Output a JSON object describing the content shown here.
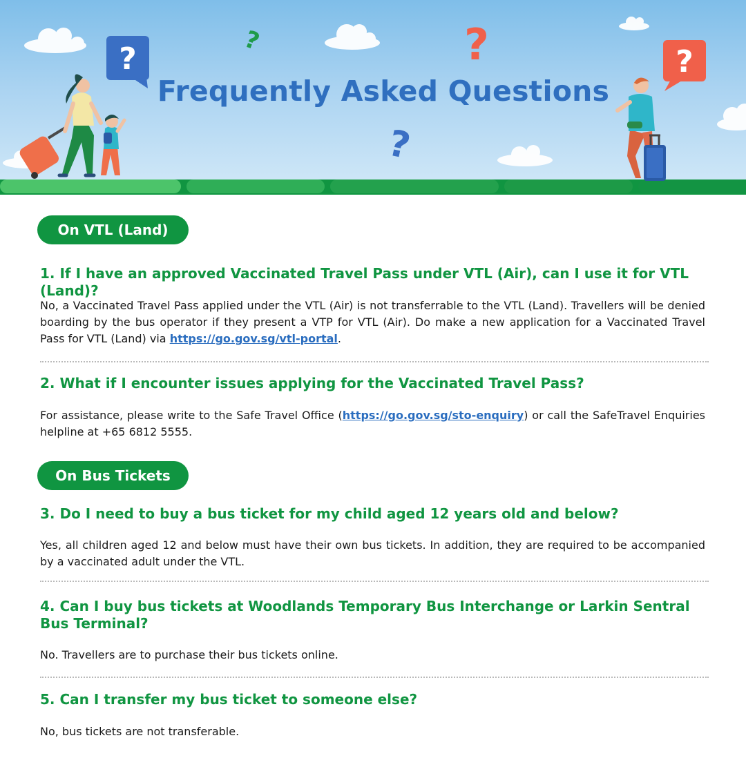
{
  "banner": {
    "title": "Frequently Asked Questions",
    "colors": {
      "sky": "#a8d2f1",
      "ground": "#109541",
      "title": "#2f6fbf",
      "bubble_blue": "#3a6fc4",
      "bubble_red": "#f0604a"
    }
  },
  "sections": [
    {
      "heading": "On VTL (Land)",
      "items": [
        {
          "question": "1. If I have an approved Vaccinated Travel Pass under VTL (Air), can I use it for VTL (Land)?",
          "answer_before": "No, a Vaccinated Travel Pass applied under the VTL (Air) is not transferrable to the VTL (Land). Travellers will be denied boarding by the bus operator if they present a VTP for VTL (Air). Do make a new application for a Vaccinated Travel Pass for VTL (Land) via ",
          "answer_link": "https://go.gov.sg/vtl-portal",
          "answer_after": "."
        },
        {
          "question": "2. What if I encounter issues applying for the Vaccinated Travel Pass?",
          "answer_before": "For assistance, please write to the Safe Travel Office (",
          "answer_link": "https://go.gov.sg/sto-enquiry",
          "answer_after": ") or call the SafeTravel Enquiries helpline at +65 6812 5555."
        }
      ]
    },
    {
      "heading": "On Bus Tickets",
      "items": [
        {
          "question": "3. Do I need to buy a bus ticket for my child aged 12 years old and below?",
          "answer": "Yes, all children aged 12 and below must have their own bus tickets. In addition, they are required to be accompanied by a vaccinated adult under the VTL."
        },
        {
          "question_line1": "4. Can I buy bus tickets at Woodlands Temporary Bus Interchange or Larkin Sentral",
          "question_line2": "Bus Terminal?",
          "answer": "No. Travellers are to purchase their bus tickets online."
        },
        {
          "question": "5. Can I transfer my bus ticket to someone else?",
          "answer": "No, bus tickets are not transferable."
        }
      ]
    }
  ]
}
